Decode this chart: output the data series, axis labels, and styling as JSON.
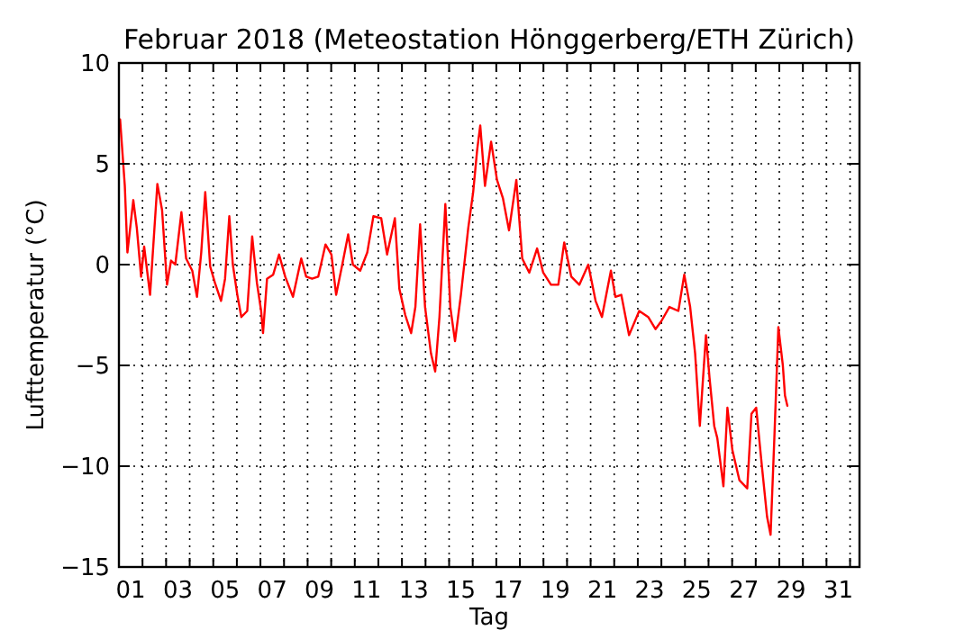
{
  "chart_data": {
    "type": "line",
    "title": "Februar 2018  (Meteostation Hönggerberg/ETH Zürich)",
    "xlabel": "Tag",
    "ylabel": "Lufttemperatur (°C)",
    "xlim": [
      1,
      32.4
    ],
    "ylim": [
      -15,
      10
    ],
    "xticks": [
      {
        "value": 1.5,
        "label": "01"
      },
      {
        "value": 3.5,
        "label": "03"
      },
      {
        "value": 5.5,
        "label": "05"
      },
      {
        "value": 7.5,
        "label": "07"
      },
      {
        "value": 9.5,
        "label": "09"
      },
      {
        "value": 11.5,
        "label": "11"
      },
      {
        "value": 13.5,
        "label": "13"
      },
      {
        "value": 15.5,
        "label": "15"
      },
      {
        "value": 17.5,
        "label": "17"
      },
      {
        "value": 19.5,
        "label": "19"
      },
      {
        "value": 21.5,
        "label": "21"
      },
      {
        "value": 23.5,
        "label": "23"
      },
      {
        "value": 25.5,
        "label": "25"
      },
      {
        "value": 27.5,
        "label": "27"
      },
      {
        "value": 29.5,
        "label": "29"
      },
      {
        "value": 31.5,
        "label": "31"
      },
      {
        "value": 2,
        "label": null
      },
      {
        "value": 3,
        "label": null
      },
      {
        "value": 4,
        "label": null
      },
      {
        "value": 5,
        "label": null
      },
      {
        "value": 6,
        "label": null
      },
      {
        "value": 7,
        "label": null
      },
      {
        "value": 8,
        "label": null
      },
      {
        "value": 9,
        "label": null
      },
      {
        "value": 10,
        "label": null
      },
      {
        "value": 11,
        "label": null
      },
      {
        "value": 12,
        "label": null
      },
      {
        "value": 13,
        "label": null
      },
      {
        "value": 14,
        "label": null
      },
      {
        "value": 15,
        "label": null
      },
      {
        "value": 16,
        "label": null
      },
      {
        "value": 17,
        "label": null
      },
      {
        "value": 18,
        "label": null
      },
      {
        "value": 19,
        "label": null
      },
      {
        "value": 20,
        "label": null
      },
      {
        "value": 21,
        "label": null
      },
      {
        "value": 22,
        "label": null
      },
      {
        "value": 23,
        "label": null
      },
      {
        "value": 24,
        "label": null
      },
      {
        "value": 25,
        "label": null
      },
      {
        "value": 26,
        "label": null
      },
      {
        "value": 27,
        "label": null
      },
      {
        "value": 28,
        "label": null
      },
      {
        "value": 29,
        "label": null
      },
      {
        "value": 30,
        "label": null
      },
      {
        "value": 31,
        "label": null
      },
      {
        "value": 32,
        "label": null
      }
    ],
    "yticks": [
      {
        "value": -15,
        "label": "−15"
      },
      {
        "value": -10,
        "label": "−10"
      },
      {
        "value": -5,
        "label": "−5"
      },
      0,
      5,
      10
    ],
    "grid": true,
    "marker": "none",
    "line_style": "solid",
    "series": [
      {
        "color": "#ff0000",
        "x": [
          1.05,
          1.25,
          1.36,
          1.61,
          1.76,
          1.94,
          2.07,
          2.32,
          2.63,
          2.83,
          3.04,
          3.21,
          3.39,
          3.65,
          3.85,
          4.11,
          4.31,
          4.49,
          4.66,
          4.87,
          5.07,
          5.33,
          5.5,
          5.68,
          5.83,
          6.02,
          6.19,
          6.44,
          6.65,
          6.85,
          7.03,
          7.11,
          7.28,
          7.54,
          7.79,
          8.05,
          8.38,
          8.73,
          8.94,
          9.19,
          9.45,
          9.76,
          10.01,
          10.21,
          10.47,
          10.72,
          10.92,
          11.23,
          11.53,
          11.79,
          12.12,
          12.37,
          12.7,
          12.89,
          13.14,
          13.39,
          13.57,
          13.77,
          13.98,
          14.23,
          14.41,
          14.59,
          14.84,
          15.05,
          15.25,
          15.5,
          15.81,
          16.02,
          16.19,
          16.32,
          16.52,
          16.78,
          17.03,
          17.28,
          17.54,
          17.85,
          18.1,
          18.4,
          18.73,
          18.99,
          19.32,
          19.63,
          19.88,
          20.18,
          20.52,
          20.9,
          21.21,
          21.48,
          21.86,
          22.05,
          22.3,
          22.63,
          23.06,
          23.44,
          23.75,
          24.0,
          24.34,
          24.72,
          24.97,
          25.22,
          25.43,
          25.63,
          25.89,
          26.04,
          26.24,
          26.37,
          26.63,
          26.8,
          27.01,
          27.31,
          27.64,
          27.82,
          28.02,
          28.27,
          28.48,
          28.63,
          28.79,
          28.96,
          29.15,
          29.24,
          29.34
        ],
        "values": [
          7.2,
          3.9,
          0.6,
          3.2,
          1.8,
          -0.6,
          0.9,
          -1.5,
          4.0,
          2.7,
          -1.0,
          0.2,
          0,
          2.6,
          0.3,
          -0.3,
          -1.6,
          0.6,
          3.6,
          -0.1,
          -0.9,
          -1.8,
          -0.7,
          2.4,
          0,
          -1.5,
          -2.6,
          -2.3,
          1.4,
          -0.9,
          -2.3,
          -3.4,
          -0.7,
          -0.5,
          0.5,
          -0.6,
          -1.6,
          0.3,
          -0.6,
          -0.7,
          -0.6,
          1.0,
          0.5,
          -1.5,
          0,
          1.5,
          0,
          -0.3,
          0.6,
          2.4,
          2.3,
          0.5,
          2.3,
          -1.2,
          -2.5,
          -3.4,
          -2.1,
          2.0,
          -2.1,
          -4.4,
          -5.3,
          -2.6,
          3.0,
          -2.1,
          -3.8,
          -1.5,
          1.8,
          3.6,
          5.7,
          6.9,
          3.9,
          6.1,
          4.2,
          3.3,
          1.7,
          4.2,
          0.3,
          -0.4,
          0.8,
          -0.4,
          -1.0,
          -1.0,
          1.1,
          -0.6,
          -1.0,
          0,
          -1.8,
          -2.6,
          -0.3,
          -1.6,
          -1.5,
          -3.5,
          -2.3,
          -2.6,
          -3.2,
          -2.8,
          -2.1,
          -2.3,
          -0.5,
          -2.1,
          -4.4,
          -8.0,
          -3.5,
          -5.6,
          -8.0,
          -8.6,
          -11.0,
          -7.1,
          -9.2,
          -10.7,
          -11.1,
          -7.4,
          -7.1,
          -10.1,
          -12.5,
          -13.4,
          -8.6,
          -3.1,
          -5.0,
          -6.5,
          -7.0
        ]
      }
    ]
  }
}
